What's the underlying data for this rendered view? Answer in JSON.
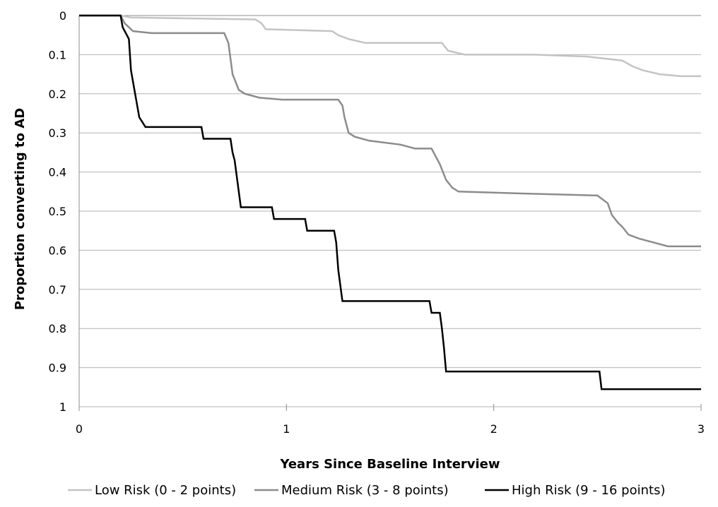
{
  "chart_data": {
    "type": "line",
    "step": true,
    "xlabel": "Years Since Baseline Interview",
    "ylabel": "Proportion converting to AD",
    "xlim": [
      0,
      3
    ],
    "ylim": [
      0,
      1
    ],
    "y_inverted": true,
    "x_ticks": [
      "0",
      "1",
      "2",
      "3"
    ],
    "y_ticks": [
      "0",
      "0.1",
      "0.2",
      "0.3",
      "0.4",
      "0.5",
      "0.6",
      "0.7",
      "0.8",
      "0.9",
      "1"
    ],
    "grid": "horizontal",
    "legend_position": "bottom",
    "series": [
      {
        "name": "Low Risk (0 - 2 points)",
        "color": "#c4c4c4",
        "points": [
          [
            0,
            0
          ],
          [
            0.2,
            0
          ],
          [
            0.25,
            0.005
          ],
          [
            0.85,
            0.01
          ],
          [
            0.88,
            0.02
          ],
          [
            0.9,
            0.035
          ],
          [
            1.22,
            0.04
          ],
          [
            1.25,
            0.05
          ],
          [
            1.3,
            0.06
          ],
          [
            1.38,
            0.07
          ],
          [
            1.75,
            0.07
          ],
          [
            1.78,
            0.09
          ],
          [
            1.82,
            0.095
          ],
          [
            1.86,
            0.1
          ],
          [
            2.2,
            0.1
          ],
          [
            2.45,
            0.105
          ],
          [
            2.62,
            0.115
          ],
          [
            2.67,
            0.13
          ],
          [
            2.72,
            0.14
          ],
          [
            2.8,
            0.15
          ],
          [
            2.9,
            0.155
          ],
          [
            3.0,
            0.155
          ]
        ]
      },
      {
        "name": "Medium Risk (3 - 8 points)",
        "color": "#8c8c8c",
        "points": [
          [
            0,
            0
          ],
          [
            0.2,
            0
          ],
          [
            0.22,
            0.02
          ],
          [
            0.26,
            0.04
          ],
          [
            0.35,
            0.045
          ],
          [
            0.7,
            0.045
          ],
          [
            0.72,
            0.07
          ],
          [
            0.74,
            0.15
          ],
          [
            0.77,
            0.19
          ],
          [
            0.8,
            0.2
          ],
          [
            0.87,
            0.21
          ],
          [
            0.98,
            0.215
          ],
          [
            1.25,
            0.215
          ],
          [
            1.27,
            0.23
          ],
          [
            1.28,
            0.26
          ],
          [
            1.3,
            0.3
          ],
          [
            1.33,
            0.31
          ],
          [
            1.4,
            0.32
          ],
          [
            1.55,
            0.33
          ],
          [
            1.62,
            0.34
          ],
          [
            1.7,
            0.34
          ],
          [
            1.74,
            0.38
          ],
          [
            1.77,
            0.42
          ],
          [
            1.8,
            0.44
          ],
          [
            1.83,
            0.45
          ],
          [
            2.15,
            0.455
          ],
          [
            2.5,
            0.46
          ],
          [
            2.55,
            0.48
          ],
          [
            2.57,
            0.51
          ],
          [
            2.6,
            0.53
          ],
          [
            2.62,
            0.54
          ],
          [
            2.65,
            0.56
          ],
          [
            2.7,
            0.57
          ],
          [
            2.77,
            0.58
          ],
          [
            2.84,
            0.59
          ],
          [
            2.95,
            0.59
          ],
          [
            3.0,
            0.59
          ]
        ]
      },
      {
        "name": "High Risk (9 - 16 points)",
        "color": "#000000",
        "points": [
          [
            0,
            0
          ],
          [
            0.2,
            0
          ],
          [
            0.21,
            0.03
          ],
          [
            0.24,
            0.06
          ],
          [
            0.25,
            0.14
          ],
          [
            0.27,
            0.2
          ],
          [
            0.28,
            0.23
          ],
          [
            0.29,
            0.26
          ],
          [
            0.32,
            0.285
          ],
          [
            0.59,
            0.285
          ],
          [
            0.6,
            0.315
          ],
          [
            0.73,
            0.315
          ],
          [
            0.74,
            0.35
          ],
          [
            0.75,
            0.37
          ],
          [
            0.77,
            0.45
          ],
          [
            0.78,
            0.49
          ],
          [
            0.93,
            0.49
          ],
          [
            0.94,
            0.52
          ],
          [
            1.09,
            0.52
          ],
          [
            1.1,
            0.55
          ],
          [
            1.23,
            0.55
          ],
          [
            1.24,
            0.58
          ],
          [
            1.25,
            0.65
          ],
          [
            1.26,
            0.69
          ],
          [
            1.27,
            0.73
          ],
          [
            1.69,
            0.73
          ],
          [
            1.7,
            0.76
          ],
          [
            1.74,
            0.76
          ],
          [
            1.75,
            0.8
          ],
          [
            1.76,
            0.85
          ],
          [
            1.77,
            0.91
          ],
          [
            2.51,
            0.91
          ],
          [
            2.52,
            0.955
          ],
          [
            3.0,
            0.955
          ]
        ]
      }
    ]
  }
}
